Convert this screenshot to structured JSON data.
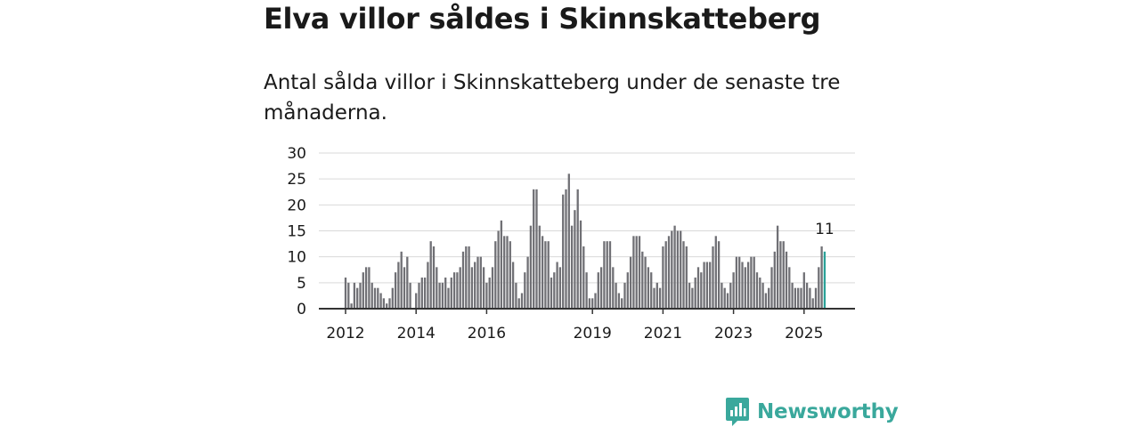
{
  "headline": "Elva villor såldes i Skinnskatteberg",
  "subtitle": "Antal sålda villor i Skinnskatteberg under de senaste tre månaderna.",
  "brand": {
    "name": "Newsworthy",
    "icon": "newsworthy-logo-icon"
  },
  "colors": {
    "bar": "#707075",
    "highlight": "#2aa198",
    "grid": "#d9d9d9",
    "axis": "#333333",
    "brand": "#3aa89c"
  },
  "chart_data": {
    "type": "bar",
    "title": "Elva villor såldes i Skinnskatteberg",
    "xlabel": "",
    "ylabel": "",
    "ylim": [
      0,
      30
    ],
    "yticks": [
      "0",
      "5",
      "10",
      "15",
      "20",
      "25",
      "30"
    ],
    "xticks": [
      {
        "label": "2012",
        "year": 2012
      },
      {
        "label": "2014",
        "year": 2014
      },
      {
        "label": "2016",
        "year": 2016
      },
      {
        "label": "2019",
        "year": 2019
      },
      {
        "label": "2021",
        "year": 2021
      },
      {
        "label": "2023",
        "year": 2023
      },
      {
        "label": "2025",
        "year": 2025
      }
    ],
    "start": {
      "year": 2012,
      "month": 1
    },
    "values": [
      6,
      5,
      1,
      5,
      4,
      5,
      7,
      8,
      8,
      5,
      4,
      4,
      3,
      2,
      1,
      2,
      4,
      7,
      9,
      11,
      8,
      10,
      5,
      0,
      3,
      5,
      6,
      6,
      9,
      13,
      12,
      8,
      5,
      5,
      6,
      4,
      6,
      7,
      7,
      8,
      11,
      12,
      12,
      8,
      9,
      10,
      10,
      8,
      5,
      6,
      8,
      13,
      15,
      17,
      14,
      14,
      13,
      9,
      5,
      2,
      3,
      7,
      10,
      16,
      23,
      23,
      16,
      14,
      13,
      13,
      6,
      7,
      9,
      8,
      22,
      23,
      26,
      16,
      19,
      23,
      17,
      12,
      7,
      2,
      2,
      3,
      7,
      8,
      13,
      13,
      13,
      8,
      5,
      3,
      2,
      5,
      7,
      10,
      14,
      14,
      14,
      11,
      10,
      8,
      7,
      4,
      5,
      4,
      12,
      13,
      14,
      15,
      16,
      15,
      15,
      13,
      12,
      5,
      4,
      6,
      8,
      7,
      9,
      9,
      9,
      12,
      14,
      13,
      5,
      4,
      3,
      5,
      7,
      10,
      10,
      9,
      8,
      9,
      10,
      10,
      7,
      6,
      5,
      3,
      4,
      8,
      11,
      16,
      13,
      13,
      11,
      8,
      5,
      4,
      4,
      4,
      7,
      5,
      4,
      2,
      4,
      8,
      12,
      11
    ],
    "highlight_index": 163,
    "annotation": {
      "index": 163,
      "text": "11"
    }
  }
}
